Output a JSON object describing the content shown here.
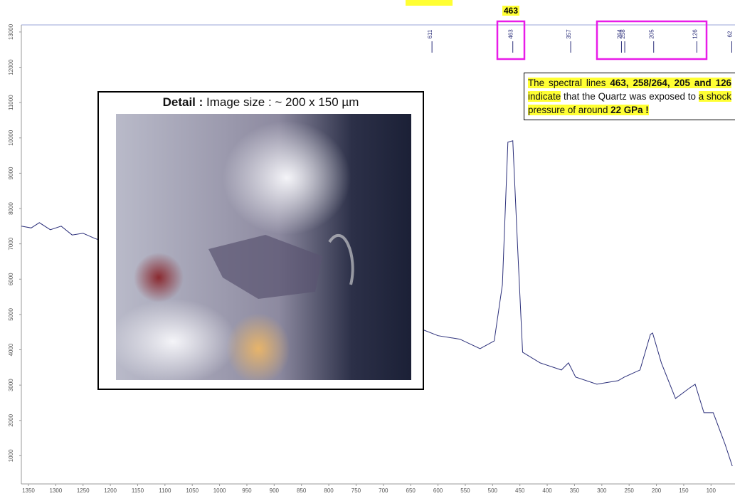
{
  "chart_data": {
    "type": "line",
    "x": [
      1363,
      1345,
      1330,
      1310,
      1290,
      1270,
      1250,
      1228,
      1200,
      1000,
      800,
      629,
      600,
      560,
      523,
      497,
      482,
      472,
      463,
      454,
      445,
      413,
      374,
      361,
      348,
      309,
      270,
      259,
      230,
      211,
      207,
      191,
      165,
      139,
      129,
      113,
      96,
      74,
      61
    ],
    "values": [
      7500,
      7450,
      7600,
      7400,
      7500,
      7250,
      7300,
      7150,
      7000,
      6000,
      5200,
      4577,
      4400,
      4300,
      4032,
      4250,
      5847,
      9879,
      9919,
      6855,
      3931,
      3629,
      3427,
      3629,
      3226,
      3024,
      3125,
      3226,
      3427,
      4435,
      4476,
      3629,
      2621,
      2923,
      3024,
      2218,
      2218,
      1310,
      706
    ],
    "color": "#2b2f7a",
    "xlim": [
      1363,
      60
    ],
    "ylim": [
      0,
      13200
    ],
    "xticks": [
      1350,
      1300,
      1250,
      1200,
      1150,
      1100,
      1050,
      1000,
      950,
      900,
      850,
      800,
      750,
      700,
      650,
      600,
      550,
      500,
      450,
      400,
      350,
      300,
      250,
      200,
      150,
      100
    ],
    "yticks": [
      1000,
      2000,
      3000,
      4000,
      5000,
      6000,
      7000,
      8000,
      9000,
      10000,
      11000,
      12000,
      13000
    ],
    "peak_labels": [
      611,
      463,
      357,
      264,
      258,
      205,
      126,
      62
    ],
    "highlight_label": "463",
    "inset_title": [
      "Detail :",
      "Image size :  ~ 200 x 150 µm"
    ],
    "note": [
      {
        "text": "The spectral lines ",
        "bold": false,
        "highlight": true
      },
      {
        "text": "463, 258/264, 205 and 126",
        "bold": true,
        "highlight": true
      },
      {
        "text": " indicate",
        "bold": false,
        "highlight": true
      },
      {
        "text": " that the Quartz was exposed to ",
        "bold": false,
        "highlight": false
      },
      {
        "text": "a shock pressure of around ",
        "bold": false,
        "highlight": true
      },
      {
        "text": "22 GPa !",
        "bold": true,
        "highlight": true
      }
    ]
  }
}
